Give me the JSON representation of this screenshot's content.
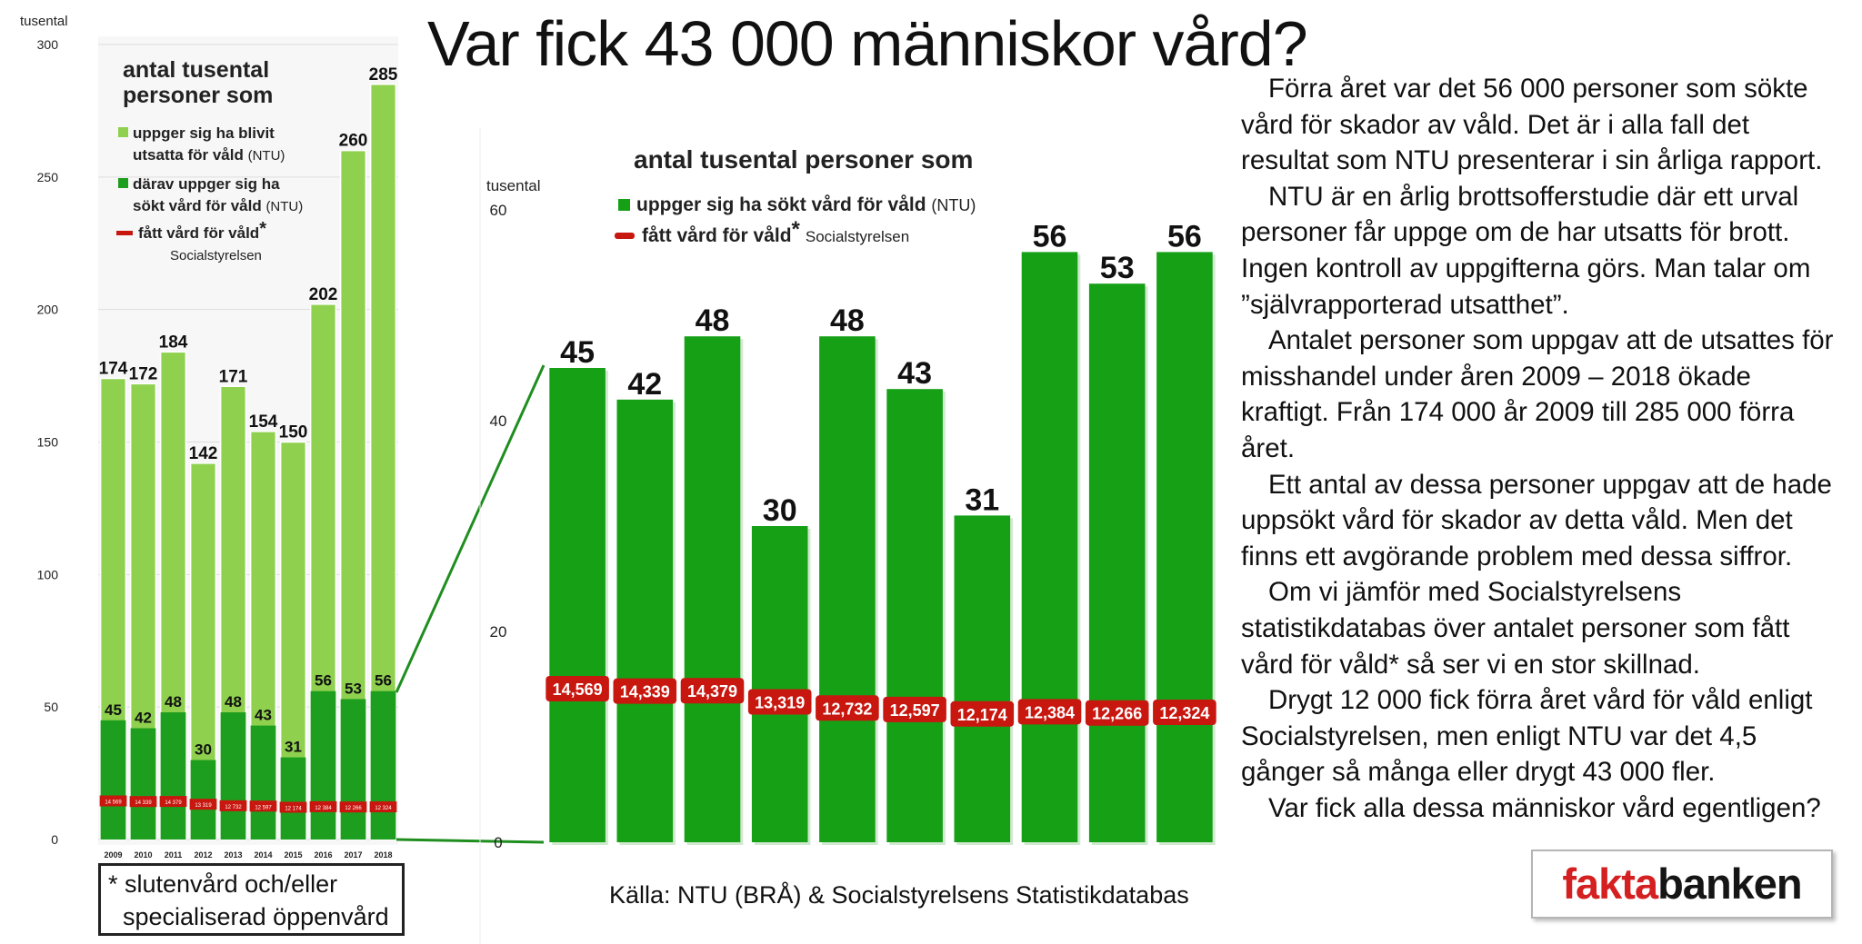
{
  "title": "Var fick 43 000 människor vård?",
  "chart_data": [
    {
      "type": "bar",
      "unit_label": "tusental",
      "legend_title": "antal tusental personer som",
      "legend": {
        "series1": "uppger sig ha blivit utsatta för våld",
        "series1_suffix": "(NTU)",
        "series2": "därav uppger sig ha sökt vård för våld",
        "series2_suffix": "(NTU)",
        "series3": "fått vård för våld",
        "series3_star": "*",
        "series3_suffix": "Socialstyrelsen"
      },
      "categories": [
        "2009",
        "2010",
        "2011",
        "2012",
        "2013",
        "2014",
        "2015",
        "2016",
        "2017",
        "2018"
      ],
      "series": [
        {
          "name": "uppger sig ha blivit utsatta för våld",
          "values": [
            174,
            172,
            184,
            142,
            171,
            154,
            150,
            202,
            260,
            285
          ]
        },
        {
          "name": "därav uppger sig ha sökt vård för våld",
          "values": [
            45,
            42,
            48,
            30,
            48,
            43,
            31,
            56,
            53,
            56
          ]
        },
        {
          "name": "fått vård för våld",
          "values": [
            14.569,
            14.339,
            14.379,
            13.319,
            12.732,
            12.597,
            12.174,
            12.384,
            12.266,
            12.324
          ],
          "labels": [
            "14 569",
            "14 339",
            "14 379",
            "13 319",
            "12 732",
            "12 597",
            "12 174",
            "12 384",
            "12 266",
            "12 324"
          ]
        }
      ],
      "yticks": [
        "300",
        "250",
        "200",
        "150",
        "100",
        "50",
        "0"
      ],
      "ylim": [
        0,
        300
      ],
      "colors": {
        "light_green": "#8fd14f",
        "dark_green": "#1e9e1e",
        "red": "#c8170f"
      }
    },
    {
      "type": "bar",
      "unit_label": "tusental",
      "legend_title": "antal tusental personer som",
      "legend": {
        "series1": "uppger sig ha sökt vård för våld",
        "series1_suffix": "(NTU)",
        "series2": "fått vård för våld",
        "series2_star": "*",
        "series2_suffix": "Socialstyrelsen"
      },
      "series": [
        {
          "name": "uppger sig ha sökt vård för våld",
          "values": [
            45,
            42,
            48,
            30,
            48,
            43,
            31,
            56,
            53,
            56
          ]
        },
        {
          "name": "fått vård för våld",
          "values": [
            14.569,
            14.339,
            14.379,
            13.319,
            12.732,
            12.597,
            12.174,
            12.384,
            12.266,
            12.324
          ],
          "labels": [
            "14,569",
            "14,339",
            "14,379",
            "13,319",
            "12,732",
            "12,597",
            "12,174",
            "12,384",
            "12,266",
            "12,324"
          ]
        }
      ],
      "yticks": [
        "60",
        "40",
        "20",
        "0"
      ],
      "ylim": [
        0,
        60
      ],
      "colors": {
        "dark_green": "#16a016",
        "red": "#c8170f"
      }
    }
  ],
  "article": {
    "paragraphs": [
      "Förra året var det 56 000 personer som sökte vård för skador av våld. Det är i alla fall det resultat som NTU presenterar i sin årliga rapport.",
      "NTU är en årlig brottsofferstudie där ett urval personer får uppge om de har utsatts för brott. Ingen kontroll av uppgifterna görs. Man talar om ”självrapporterad utsatthet”.",
      "Antalet personer som uppgav att de utsattes för misshandel under åren 2009 – 2018 ökade kraftigt. Från 174 000 år 2009 till 285 000 förra året.",
      "Ett antal av dessa personer uppgav att de hade uppsökt vård för skador av detta våld. Men det finns ett avgörande problem med dessa siffror.",
      "Om vi jämför med Socialstyrelsens statistikdatabas över antalet personer som fått vård för våld* så ser vi en stor skillnad.",
      "Drygt 12 000 fick förra året vård för våld enligt Socialstyrelsen, men enligt NTU var det 4,5 gånger så många eller drygt 43 000 fler.",
      "Var fick alla dessa människor vård egentligen?"
    ]
  },
  "footnote": {
    "line1": "* slutenvård och/eller",
    "line2": "specialiserad öppenvård"
  },
  "source": "Källa: NTU (BRÅ) & Socialstyrelsens Statistikdatabas",
  "logo": {
    "part1": "fakta",
    "part2": "banken"
  }
}
